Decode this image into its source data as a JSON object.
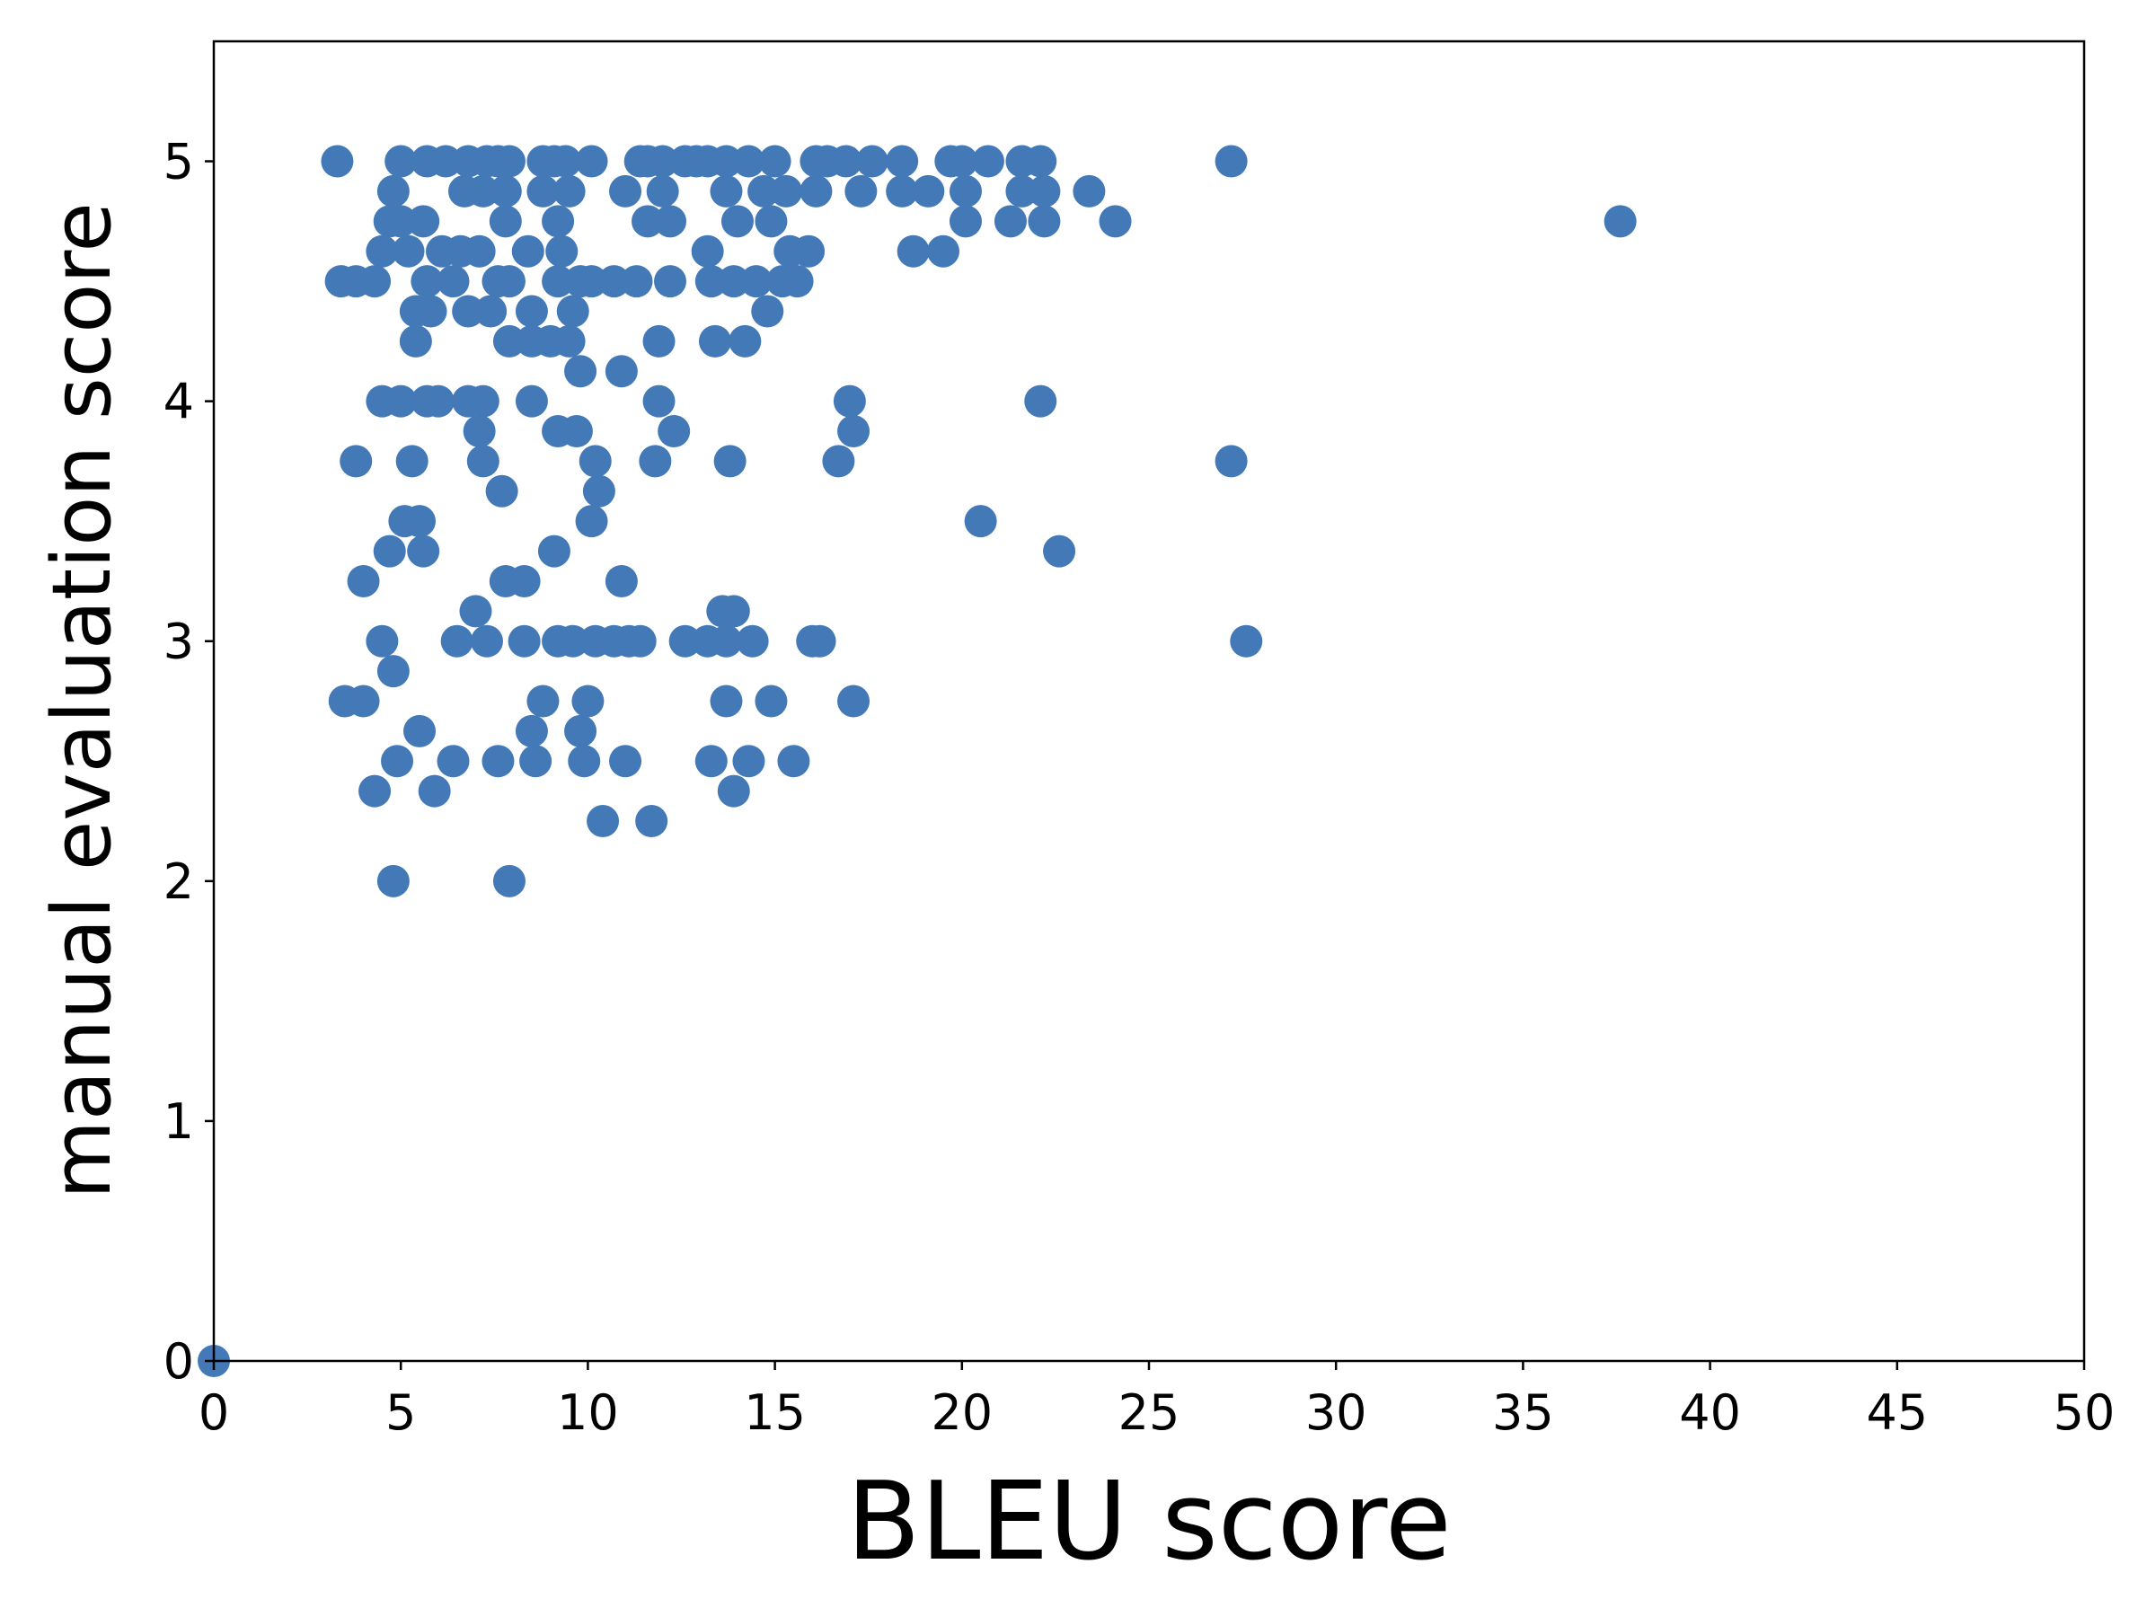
{
  "chart_data": {
    "type": "scatter",
    "xlabel": "BLEU score",
    "ylabel": "manual evaluation score",
    "xlim": [
      0,
      50
    ],
    "ylim": [
      0,
      5.5
    ],
    "xticks": [
      0,
      5,
      10,
      15,
      20,
      25,
      30,
      35,
      40,
      45,
      50
    ],
    "yticks": [
      0,
      1,
      2,
      3,
      4,
      5
    ],
    "grid": false,
    "marker_color": "#4479b8",
    "points_by_y": [
      {
        "y": 5,
        "x": [
          3.3,
          5.0,
          5.7,
          6.2,
          6.8,
          7.3,
          7.6,
          7.9,
          8.8,
          9.1,
          9.4,
          10.1,
          11.4,
          11.6,
          12.0,
          12.6,
          12.9,
          13.2,
          13.7,
          14.3,
          15.0,
          16.1,
          16.4,
          16.9,
          17.6,
          18.4,
          19.7,
          20.0,
          20.7,
          21.6,
          22.1,
          27.2
        ]
      },
      {
        "y": 4.875,
        "x": [
          4.8,
          6.7,
          7.2,
          7.8,
          8.8,
          9.5,
          11.0,
          12.0,
          13.7,
          14.7,
          15.3,
          16.1,
          17.3,
          18.4,
          19.1,
          20.1,
          21.6,
          22.2,
          23.4
        ]
      },
      {
        "y": 4.75,
        "x": [
          4.7,
          5.0,
          5.6,
          7.8,
          9.2,
          11.6,
          12.2,
          14.0,
          14.9,
          20.1,
          21.3,
          22.2,
          24.1,
          37.6
        ]
      },
      {
        "y": 4.625,
        "x": [
          4.5,
          5.2,
          6.1,
          6.6,
          7.1,
          8.4,
          9.3,
          13.2,
          15.4,
          15.9,
          18.7,
          19.5
        ]
      },
      {
        "y": 4.5,
        "x": [
          3.4,
          3.8,
          4.3,
          5.7,
          6.4,
          7.6,
          7.9,
          9.2,
          9.8,
          10.1,
          10.7,
          11.3,
          12.2,
          13.3,
          13.9,
          14.5,
          15.2,
          15.6
        ]
      },
      {
        "y": 4.375,
        "x": [
          5.4,
          5.8,
          6.8,
          7.4,
          8.5,
          9.6,
          14.8
        ]
      },
      {
        "y": 4.25,
        "x": [
          5.4,
          7.9,
          8.5,
          9.0,
          9.5,
          11.9,
          13.4,
          14.2
        ]
      },
      {
        "y": 4.125,
        "x": [
          9.8,
          10.9
        ]
      },
      {
        "y": 4.0,
        "x": [
          4.5,
          5.0,
          5.7,
          6.0,
          6.8,
          7.2,
          8.5,
          11.9,
          17.0,
          22.1
        ]
      },
      {
        "y": 3.875,
        "x": [
          7.1,
          9.2,
          9.7,
          12.3,
          17.1
        ]
      },
      {
        "y": 3.75,
        "x": [
          3.8,
          5.3,
          7.2,
          10.2,
          11.8,
          13.8,
          16.7,
          27.2
        ]
      },
      {
        "y": 3.625,
        "x": [
          7.7,
          10.3
        ]
      },
      {
        "y": 3.5,
        "x": [
          5.1,
          5.5,
          10.1,
          20.5
        ]
      },
      {
        "y": 3.375,
        "x": [
          4.7,
          5.6,
          9.1,
          22.6
        ]
      },
      {
        "y": 3.25,
        "x": [
          4.0,
          7.8,
          8.3,
          10.9
        ]
      },
      {
        "y": 3.125,
        "x": [
          7.0,
          13.6,
          13.9
        ]
      },
      {
        "y": 3.0,
        "x": [
          4.5,
          6.5,
          7.3,
          8.3,
          9.2,
          9.6,
          10.2,
          10.7,
          11.1,
          11.4,
          12.6,
          13.2,
          13.7,
          14.4,
          16.0,
          16.2,
          27.6
        ]
      },
      {
        "y": 2.875,
        "x": [
          4.8
        ]
      },
      {
        "y": 2.75,
        "x": [
          3.5,
          4.0,
          8.8,
          10.0,
          13.7,
          14.9,
          17.1
        ]
      },
      {
        "y": 2.625,
        "x": [
          5.5,
          8.5,
          9.8
        ]
      },
      {
        "y": 2.5,
        "x": [
          4.9,
          6.4,
          7.6,
          8.6,
          9.9,
          11.0,
          13.3,
          14.3,
          15.5
        ]
      },
      {
        "y": 2.375,
        "x": [
          4.3,
          5.9,
          13.9
        ]
      },
      {
        "y": 2.25,
        "x": [
          10.4,
          11.7
        ]
      },
      {
        "y": 2.0,
        "x": [
          4.8,
          7.9
        ]
      },
      {
        "y": 0,
        "x": [
          0
        ]
      }
    ]
  }
}
